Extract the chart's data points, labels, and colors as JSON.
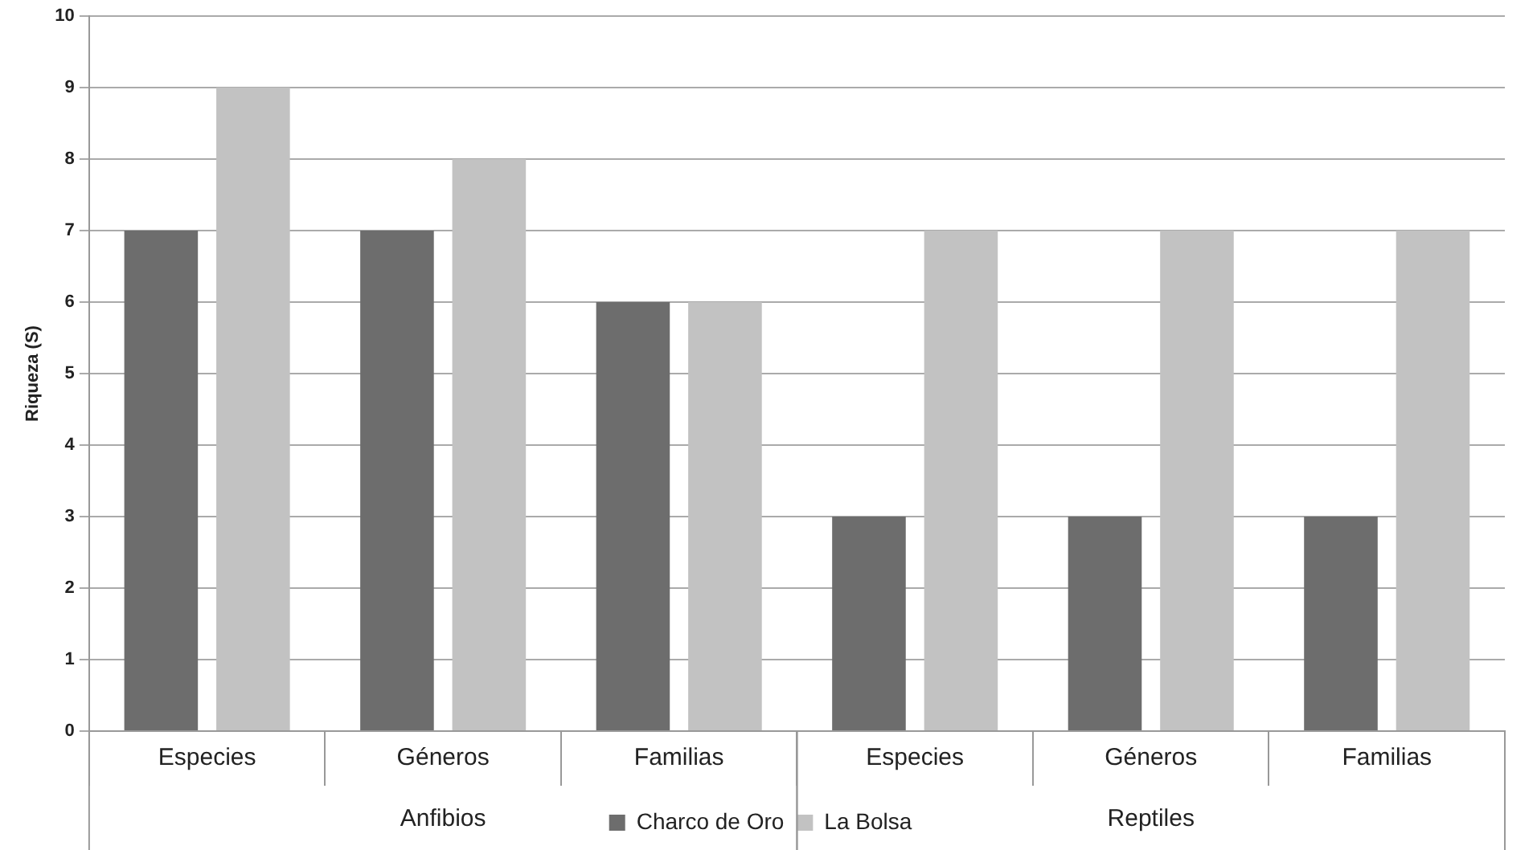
{
  "chart_data": {
    "type": "bar",
    "ylabel": "Riqueza (S)",
    "categories": [
      "Especies",
      "Géneros",
      "Familias",
      "Especies",
      "Géneros",
      "Familias"
    ],
    "annotations": [
      "Anfibios",
      "Reptiles"
    ],
    "series": [
      {
        "name": "Charco de Oro",
        "color": "#6d6d6d",
        "values": [
          7,
          7,
          6,
          3,
          3,
          3
        ]
      },
      {
        "name": "La Bolsa",
        "color": "#c2c2c2",
        "values": [
          9,
          8,
          6,
          7,
          7,
          7
        ]
      }
    ],
    "ylim": [
      0,
      10
    ],
    "yticks": [
      0,
      1,
      2,
      3,
      4,
      5,
      6,
      7,
      8,
      9,
      10
    ],
    "grid": "y",
    "legend": "bottom"
  }
}
